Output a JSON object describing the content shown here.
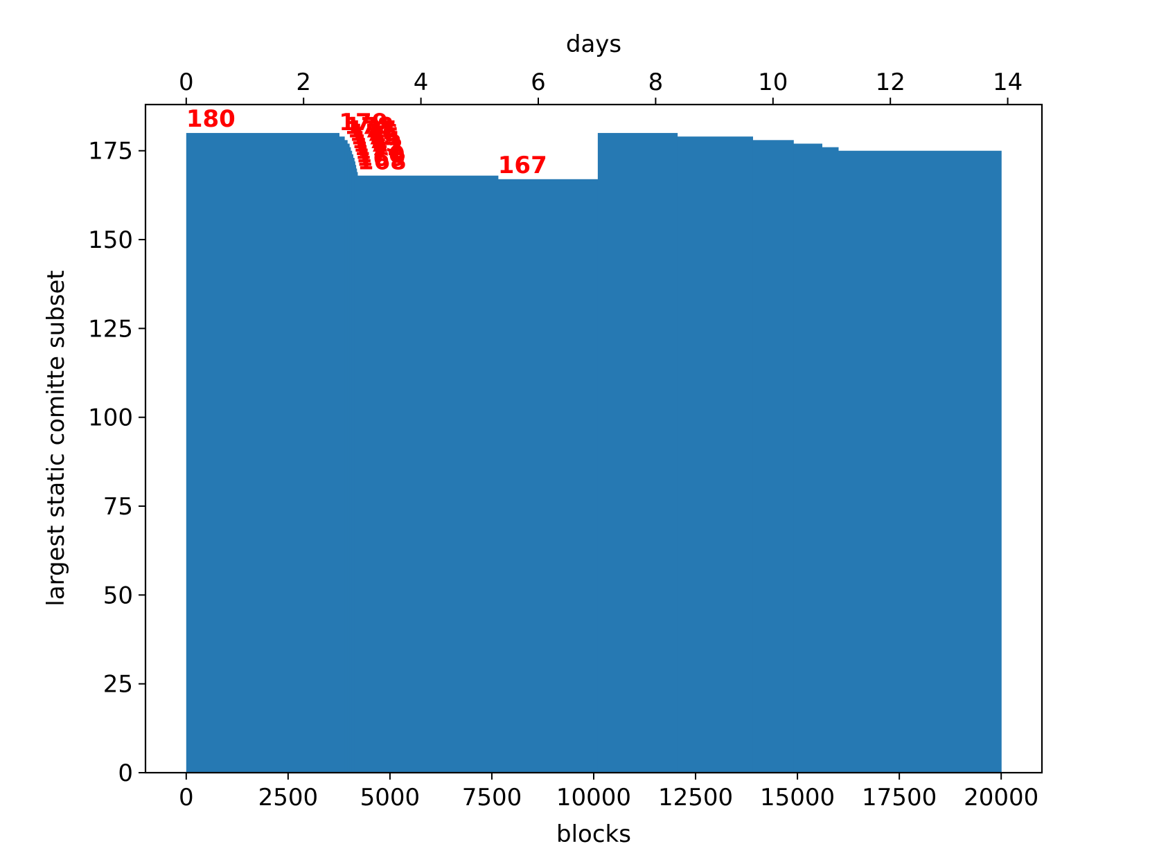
{
  "chart_data": {
    "type": "area",
    "xlabel": "blocks",
    "ylabel": "largest static comitte subset",
    "x2label": "days",
    "xlim": [
      -1000,
      21000
    ],
    "ylim": [
      0,
      188
    ],
    "x2lim": [
      -0.6944,
      14.5833
    ],
    "xticks": [
      0,
      2500,
      5000,
      7500,
      10000,
      12500,
      15000,
      17500,
      20000
    ],
    "xtick_labels": [
      "0",
      "2500",
      "5000",
      "7500",
      "10000",
      "12500",
      "15000",
      "17500",
      "20000"
    ],
    "yticks": [
      0,
      25,
      50,
      75,
      100,
      125,
      150,
      175
    ],
    "ytick_labels": [
      "0",
      "25",
      "50",
      "75",
      "100",
      "125",
      "150",
      "175"
    ],
    "x2ticks": [
      0,
      2,
      4,
      6,
      8,
      10,
      12,
      14
    ],
    "x2tick_labels": [
      "0",
      "2",
      "4",
      "6",
      "8",
      "10",
      "12",
      "14"
    ],
    "fill_color": "#2679b3",
    "annotation_color": "#ff0000",
    "steps": [
      {
        "x0": 0,
        "x1": 3750,
        "y": 180
      },
      {
        "x0": 3750,
        "x1": 3880,
        "y": 179
      },
      {
        "x0": 3880,
        "x1": 3950,
        "y": 178
      },
      {
        "x0": 3950,
        "x1": 4000,
        "y": 177
      },
      {
        "x0": 4000,
        "x1": 4030,
        "y": 176
      },
      {
        "x0": 4030,
        "x1": 4060,
        "y": 175
      },
      {
        "x0": 4060,
        "x1": 4090,
        "y": 174
      },
      {
        "x0": 4090,
        "x1": 4120,
        "y": 173
      },
      {
        "x0": 4120,
        "x1": 4140,
        "y": 172
      },
      {
        "x0": 4140,
        "x1": 4160,
        "y": 171
      },
      {
        "x0": 4160,
        "x1": 4180,
        "y": 170
      },
      {
        "x0": 4180,
        "x1": 4200,
        "y": 169
      },
      {
        "x0": 4200,
        "x1": 7650,
        "y": 168
      },
      {
        "x0": 7650,
        "x1": 10100,
        "y": 167
      },
      {
        "x0": 10100,
        "x1": 12050,
        "y": 180
      },
      {
        "x0": 12050,
        "x1": 13900,
        "y": 179
      },
      {
        "x0": 13900,
        "x1": 14900,
        "y": 178
      },
      {
        "x0": 14900,
        "x1": 15600,
        "y": 177
      },
      {
        "x0": 15600,
        "x1": 16000,
        "y": 176
      },
      {
        "x0": 16000,
        "x1": 20000,
        "y": 175
      }
    ],
    "annotations": [
      {
        "text": "180",
        "x": 0,
        "y": 180
      },
      {
        "text": "179",
        "x": 3750,
        "y": 179
      },
      {
        "text": "178",
        "x": 3880,
        "y": 178
      },
      {
        "text": "177",
        "x": 3950,
        "y": 177
      },
      {
        "text": "176",
        "x": 4000,
        "y": 176
      },
      {
        "text": "175",
        "x": 4030,
        "y": 175
      },
      {
        "text": "174",
        "x": 4060,
        "y": 174
      },
      {
        "text": "173",
        "x": 4090,
        "y": 173
      },
      {
        "text": "172",
        "x": 4120,
        "y": 172
      },
      {
        "text": "171",
        "x": 4140,
        "y": 171
      },
      {
        "text": "170",
        "x": 4160,
        "y": 170
      },
      {
        "text": "169",
        "x": 4180,
        "y": 169
      },
      {
        "text": "168",
        "x": 4200,
        "y": 168
      },
      {
        "text": "167",
        "x": 7650,
        "y": 167
      }
    ]
  }
}
